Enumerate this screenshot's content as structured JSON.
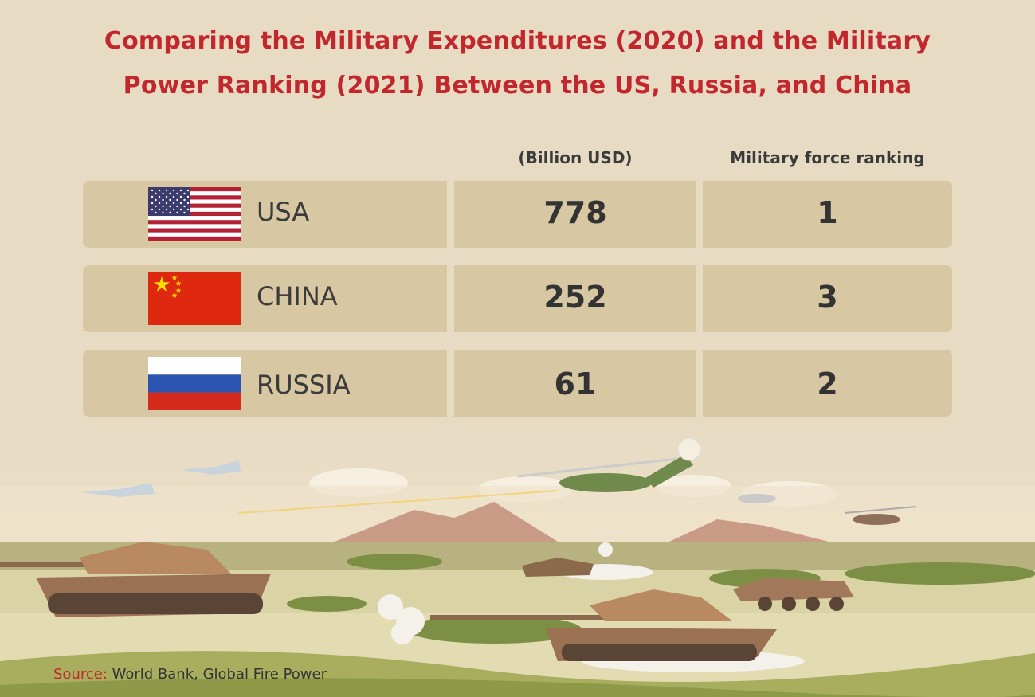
{
  "title": {
    "line1": "Comparing the Military Expenditures (2020) and the Military",
    "line2": "Power Ranking (2021) Between the US, Russia, and China"
  },
  "table": {
    "headers": {
      "spend": "(Billion USD)",
      "rank": "Military force ranking"
    },
    "rows": [
      {
        "country": "USA",
        "spend": "778",
        "rank": "1",
        "flag": "us-flag-icon"
      },
      {
        "country": "CHINA",
        "spend": "252",
        "rank": "3",
        "flag": "china-flag-icon"
      },
      {
        "country": "RUSSIA",
        "spend": "61",
        "rank": "2",
        "flag": "russia-flag-icon"
      }
    ]
  },
  "source": {
    "label": "Source:",
    "text": "World Bank, Global Fire Power"
  },
  "colors": {
    "title": "#c1272d",
    "background": "#e7dbc3",
    "cell": "#d7c7a2",
    "text": "#333333"
  }
}
